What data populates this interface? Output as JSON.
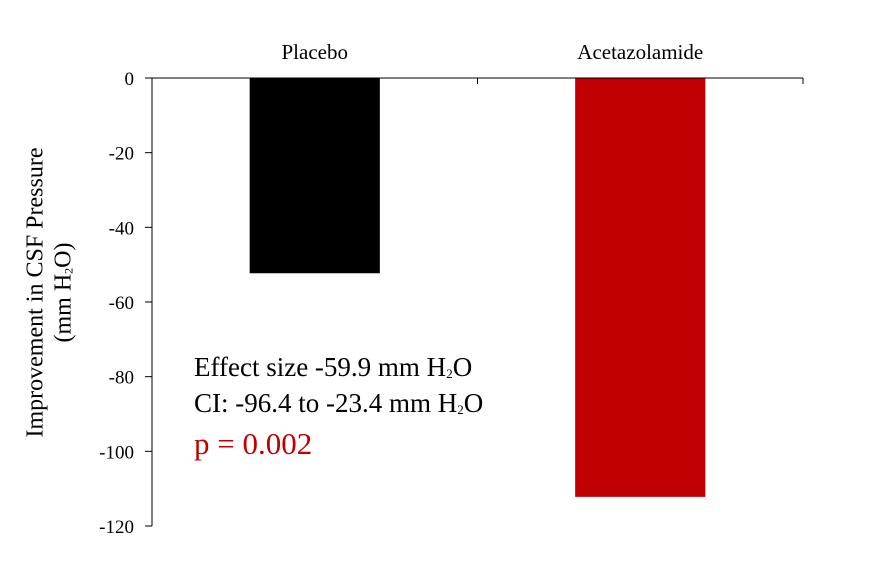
{
  "chart_data": {
    "type": "bar",
    "categories": [
      "Placebo",
      "Acetazolamide"
    ],
    "values": [
      -52.3,
      -112.2
    ],
    "colors": [
      "#000000",
      "#c00000"
    ],
    "title": "",
    "xlabel": "",
    "ylabel_line1": "Improvement in CSF Pressure",
    "ylabel_line2_pre": "(mm H",
    "ylabel_line2_sub": "2",
    "ylabel_line2_post": "O)",
    "ylim": [
      -120,
      0
    ],
    "yticks": [
      0,
      -20,
      -40,
      -60,
      -80,
      -100,
      -120
    ],
    "ytick_labels": [
      "0",
      "-20",
      "-40",
      "-60",
      "-80",
      "-100",
      "-120"
    ],
    "xaxis_position": "top",
    "grid": false,
    "annotations": {
      "effect_pre": "Effect size -59.9 mm H",
      "effect_sub": "2",
      "effect_post": "O",
      "ci_pre": "CI: -96.4 to -23.4 mm H",
      "ci_sub": "2",
      "ci_post": "O",
      "p_value": "p = 0.002",
      "p_color": "#c00000"
    }
  }
}
